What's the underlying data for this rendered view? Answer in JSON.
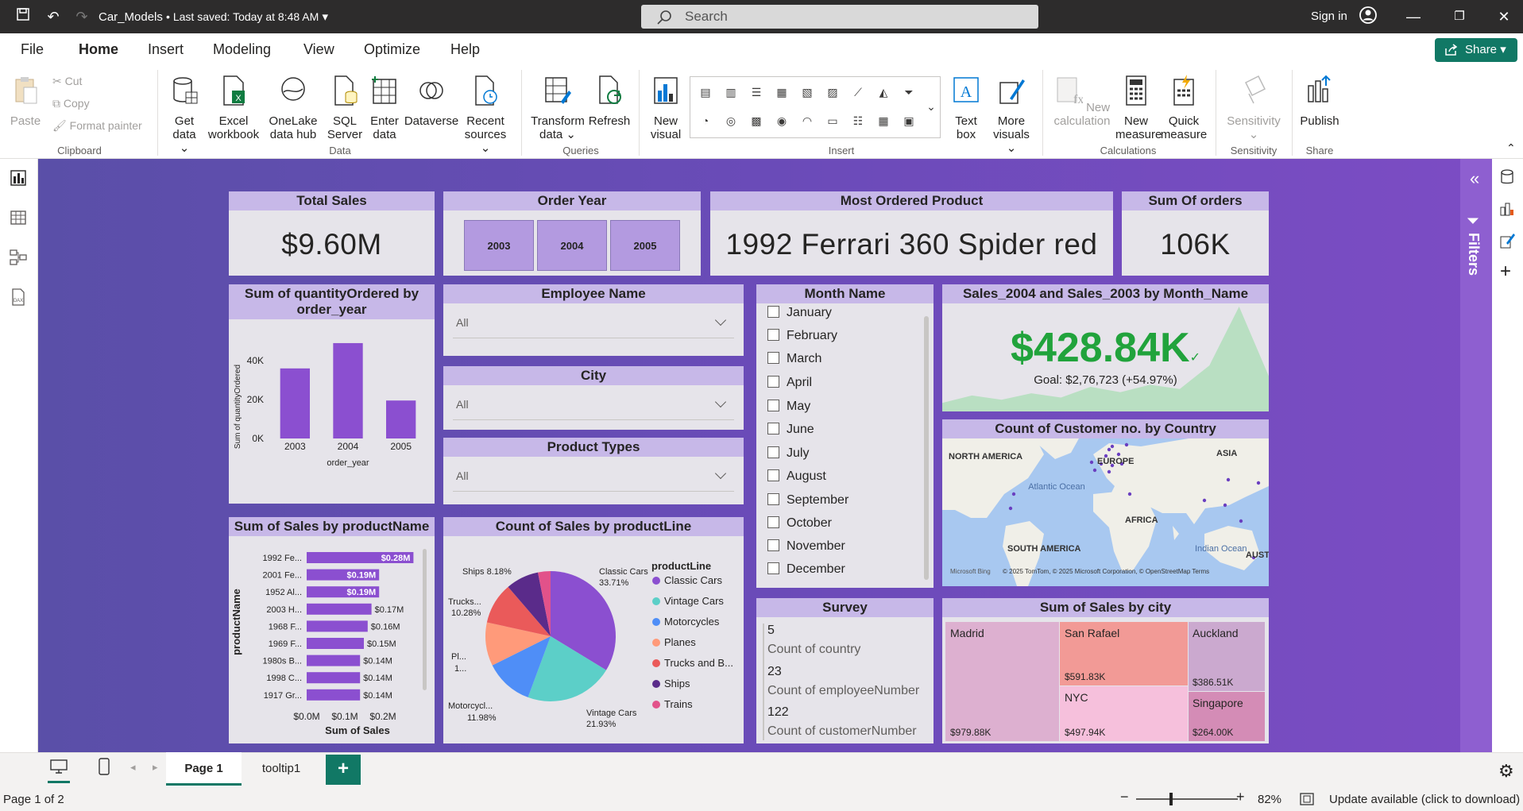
{
  "titlebar": {
    "file_name": "Car_Models",
    "saved": "• Last saved: Today at 8:48 AM",
    "search_placeholder": "Search",
    "signin": "Sign in"
  },
  "menu": {
    "items": [
      "File",
      "Home",
      "Insert",
      "Modeling",
      "View",
      "Optimize",
      "Help"
    ],
    "share": "Share"
  },
  "ribbon": {
    "clipboard": {
      "paste": "Paste",
      "cut": "Cut",
      "copy": "Copy",
      "format_painter": "Format painter",
      "group": "Clipboard"
    },
    "data": {
      "get_data": "Get data",
      "excel": "Excel workbook",
      "onelake": "OneLake data hub",
      "sql": "SQL Server",
      "enter": "Enter data",
      "dataverse": "Dataverse",
      "recent": "Recent sources",
      "group": "Data"
    },
    "queries": {
      "transform": "Transform data",
      "refresh": "Refresh",
      "group": "Queries"
    },
    "insert": {
      "new_visual": "New visual",
      "text_box": "Text box",
      "more_visuals": "More visuals",
      "group": "Insert"
    },
    "calculations": {
      "new_calc": "New calculation",
      "new_measure": "New measure",
      "quick_measure": "Quick measure",
      "group": "Calculations"
    },
    "sensitivity": {
      "label": "Sensitivity",
      "group": "Sensitivity"
    },
    "share": {
      "publish": "Publish",
      "group": "Share"
    }
  },
  "report": {
    "total_sales": {
      "title": "Total Sales",
      "value": "$9.60M"
    },
    "order_year": {
      "title": "Order Year",
      "years": [
        "2003",
        "2004",
        "2005"
      ]
    },
    "most_ordered": {
      "title": "Most Ordered Product",
      "value": "1992 Ferrari 360 Spider red"
    },
    "sum_orders": {
      "title": "Sum Of orders",
      "value": "106K"
    },
    "qty_chart": {
      "title": "Sum of quantityOrdered by order_year",
      "ylabel": "Sum of quantityOrdered",
      "xlabel": "order_year",
      "yticks": [
        "40K",
        "20K",
        "0K"
      ]
    },
    "employee": {
      "title": "Employee Name",
      "value": "All"
    },
    "city": {
      "title": "City",
      "value": "All"
    },
    "product_types": {
      "title": "Product Types",
      "value": "All"
    },
    "month": {
      "title": "Month Name",
      "months": [
        "January",
        "February",
        "March",
        "April",
        "May",
        "June",
        "July",
        "August",
        "September",
        "October",
        "November",
        "December"
      ]
    },
    "sales_kpi": {
      "title": "Sales_2004 and Sales_2003 by Month_Name",
      "value": "$428.84K",
      "goal": "Goal: $2,76,723 (+54.97%)",
      "color": "#21a33c"
    },
    "map": {
      "title": "Count of Customer no. by Country",
      "labels": [
        "NORTH AMERICA",
        "EUROPE",
        "ASIA",
        "Atlantic Ocean",
        "AFRICA",
        "SOUTH AMERICA",
        "Indian Ocean",
        "AUST"
      ],
      "credit": "Microsoft Bing",
      "copyright": "© 2025 TomTom, © 2025 Microsoft Corporation, © OpenStreetMap  Terms"
    },
    "sales_product": {
      "title": "Sum of Sales by productName",
      "ylabel": "productName",
      "xlabel": "Sum of Sales",
      "xticks": [
        "$0.0M",
        "$0.1M",
        "$0.2M"
      ],
      "data_labels": [
        "$0.28M",
        "$0.19M",
        "$0.19M",
        "$0.17M",
        "$0.16M",
        "$0.15M",
        "$0.14M",
        "$0.14M",
        "$0.14M"
      ]
    },
    "pie": {
      "title": "Count of Sales by productLine",
      "legend_title": "productLine",
      "legend": [
        "Classic Cars",
        "Vintage Cars",
        "Motorcycles",
        "Planes",
        "Trucks and B...",
        "Ships",
        "Trains"
      ],
      "callouts": {
        "classic": [
          "Classic Cars",
          "33.71%"
        ],
        "vintage": [
          "Vintage Cars",
          "21.93%"
        ],
        "motor": [
          "Motorcycl...",
          "11.98%"
        ],
        "planes": [
          "Pl...",
          "1..."
        ],
        "trucks": [
          "Trucks...",
          "10.28%"
        ],
        "ships": "Ships 8.18%"
      }
    },
    "survey": {
      "title": "Survey",
      "items": [
        {
          "value": "5",
          "label": "Count of country"
        },
        {
          "value": "23",
          "label": "Count of employeeNumber"
        },
        {
          "value": "122",
          "label": "Count of customerNumber"
        }
      ]
    },
    "treemap": {
      "title": "Sum of Sales by city",
      "cells": [
        {
          "city": "Madrid",
          "value": "$979.88K"
        },
        {
          "city": "San Rafael",
          "value": "$591.83K"
        },
        {
          "city": "NYC",
          "value": "$497.94K"
        },
        {
          "city": "Auckland",
          "value": "$386.51K"
        },
        {
          "city": "Singapore",
          "value": "$264.00K"
        }
      ]
    }
  },
  "filters": "Filters",
  "tabs": [
    "Page 1",
    "tooltip1"
  ],
  "status": {
    "page": "Page 1 of 2",
    "zoom": "82%",
    "update": "Update available (click to download)"
  },
  "chart_data": [
    {
      "type": "bar",
      "title": "Sum of quantityOrdered by order_year",
      "categories": [
        "2003",
        "2004",
        "2005"
      ],
      "values": [
        36000,
        49000,
        19500
      ],
      "xlabel": "order_year",
      "ylabel": "Sum of quantityOrdered",
      "ylim": [
        0,
        50000
      ],
      "color": "#8b4fd0"
    },
    {
      "type": "bar",
      "orientation": "horizontal",
      "title": "Sum of Sales by productName",
      "categories": [
        "1992 Fe...",
        "2001 Fe...",
        "1952 Al...",
        "2003 H...",
        "1968 F...",
        "1969 F...",
        "1980s B...",
        "1998 C...",
        "1917 Gr..."
      ],
      "values": [
        0.28,
        0.19,
        0.19,
        0.17,
        0.16,
        0.15,
        0.14,
        0.14,
        0.14
      ],
      "xlabel": "Sum of Sales",
      "ylabel": "productName",
      "xlim": [
        0,
        0.3
      ],
      "color": "#8b4fd0"
    },
    {
      "type": "pie",
      "title": "Count of Sales by productLine",
      "categories": [
        "Classic Cars",
        "Vintage Cars",
        "Motorcycles",
        "Planes",
        "Trucks and Buses",
        "Ships",
        "Trains"
      ],
      "values": [
        33.71,
        21.93,
        11.98,
        10.8,
        10.28,
        8.18,
        3.12
      ],
      "colors": [
        "#8b4fd0",
        "#5ccfc8",
        "#4f8ef7",
        "#ff9a7a",
        "#ea5a5a",
        "#5a2b8a",
        "#e2528a"
      ]
    },
    {
      "type": "area",
      "title": "Sales_2004 and Sales_2003 by Month_Name",
      "values": [
        5,
        12,
        8,
        14,
        10,
        20,
        15,
        22,
        18,
        40,
        95,
        30
      ],
      "color": "#b9dfc2"
    }
  ]
}
